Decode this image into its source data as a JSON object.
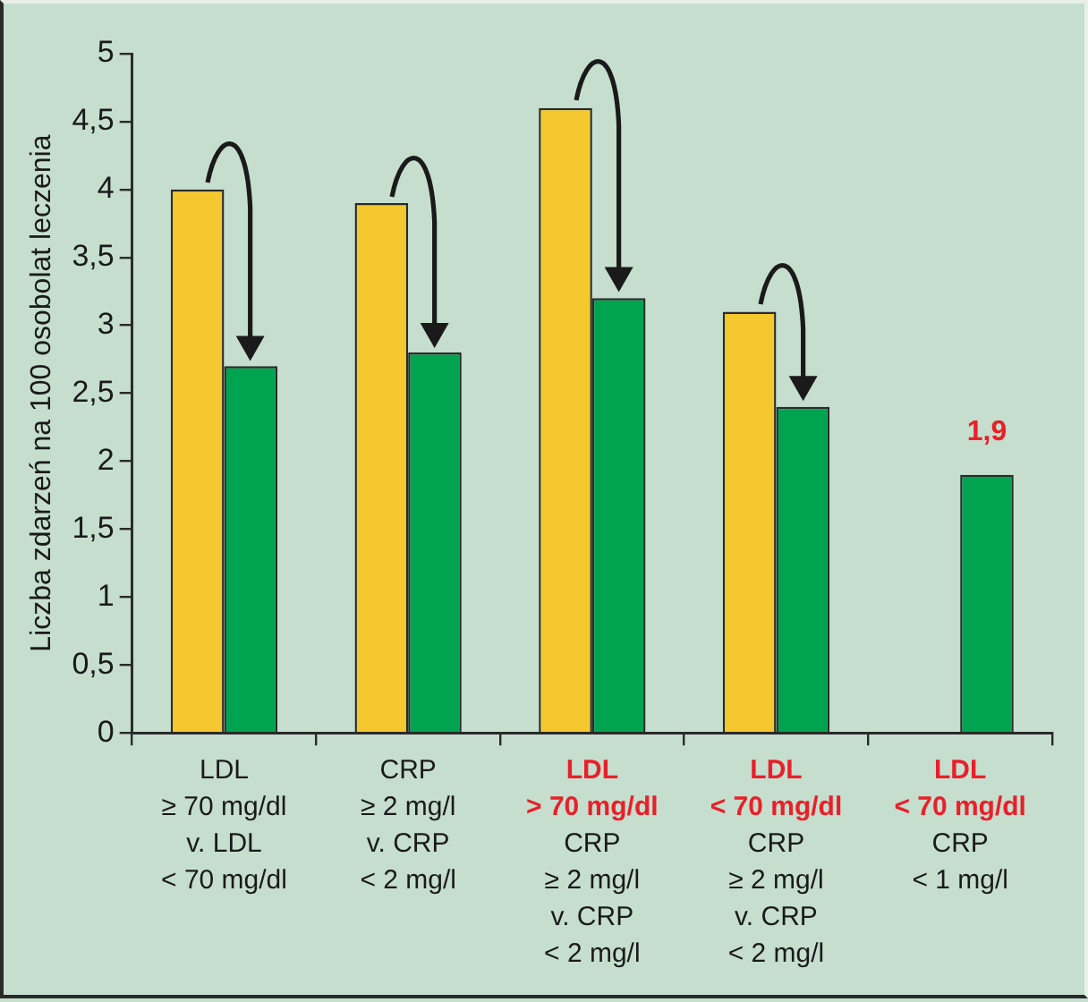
{
  "chart_data": {
    "type": "bar",
    "ylabel": "Liczba zdarzeń na 100 osobolat leczenia",
    "categories": [
      "LDL\n≥ 70 mg/dl\nv. LDL\n< 70 mg/dl",
      "CRP\n≥ 2 mg/l\nv. CRP\n< 2 mg/l",
      "LDL\n> 70 mg/dl\nCRP\n≥ 2 mg/l\nv. CRP\n< 2 mg/l",
      "LDL\n< 70 mg/dl\nCRP\n≥ 2 mg/l\nv. CRP\n< 2 mg/l",
      "LDL\n< 70 mg/dl\nCRP\n< 1 mg/l"
    ],
    "series": [
      {
        "color": "#f4c82e",
        "values": [
          4,
          3.9,
          4.6,
          3.1,
          null
        ]
      },
      {
        "color": "#00a34f",
        "values": [
          2.7,
          2.8,
          3.2,
          2.4,
          1.9
        ],
        "value_labels": [
          null,
          null,
          null,
          null,
          "1,9"
        ]
      }
    ],
    "ylim": [
      0,
      5
    ],
    "yticks": [
      0,
      {
        "value": 0.5,
        "label": "0,5"
      },
      1,
      {
        "value": 1.5,
        "label": "1,5"
      },
      2,
      {
        "value": 2.5,
        "label": "2,5"
      },
      3,
      {
        "value": 3.5,
        "label": "3,5"
      },
      4,
      {
        "value": 4.5,
        "label": "4,5"
      },
      5
    ],
    "grid": false,
    "legend": false
  }
}
